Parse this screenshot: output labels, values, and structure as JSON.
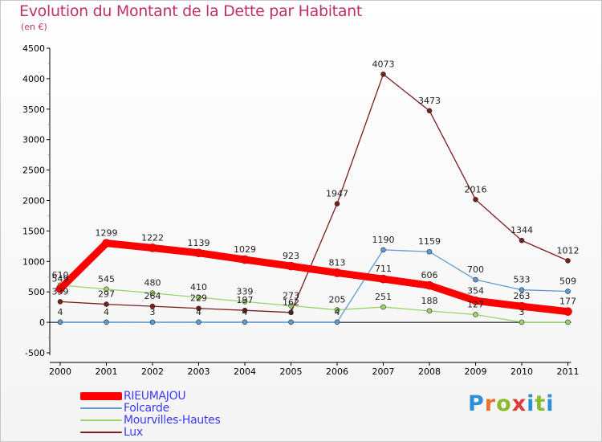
{
  "header": {
    "title": "Evolution du Montant de la Dette par Habitant",
    "unit": "(en €)"
  },
  "logo": {
    "text": "Proxiti"
  },
  "chart_data": {
    "type": "line",
    "title": "Evolution du Montant de la Dette par Habitant",
    "subtitle": "(en €)",
    "xlabel": "",
    "ylabel": "",
    "x": [
      "2000",
      "2001",
      "2002",
      "2003",
      "2004",
      "2005",
      "2006",
      "2007",
      "2008",
      "2009",
      "2010",
      "2011"
    ],
    "ylim": [
      -500,
      4500
    ],
    "yticks": [
      -500,
      0,
      500,
      1000,
      1500,
      2000,
      2500,
      3000,
      3500,
      4000,
      4500
    ],
    "grid": false,
    "legend_position": "bottom-left",
    "series": [
      {
        "name": "RIEUMAJOU",
        "color": "#ff0000",
        "values": [
          549,
          1299,
          1222,
          1139,
          1029,
          923,
          813,
          711,
          606,
          354,
          263,
          177
        ],
        "labels": [
          "549",
          "1299",
          "1222",
          "1139",
          "1029",
          "923",
          "813",
          "711",
          "606",
          "354",
          "263",
          "177"
        ]
      },
      {
        "name": "Folcarde",
        "color": "#5b9bd5",
        "values": [
          4,
          4,
          3,
          4,
          4,
          4,
          4,
          1190,
          1159,
          700,
          533,
          509
        ],
        "labels": [
          "4",
          "4",
          "3",
          "4",
          "4",
          "4",
          "4",
          "1190",
          "1159",
          "700",
          "533",
          "509"
        ]
      },
      {
        "name": "Mourvilles-Hautes",
        "color": "#9ed36a",
        "values": [
          610,
          545,
          480,
          410,
          339,
          273,
          205,
          251,
          188,
          127,
          3,
          3
        ],
        "labels": [
          "610",
          "545",
          "480",
          "410",
          "339",
          "273",
          "205",
          "251",
          "188",
          "127",
          "3",
          ""
        ]
      },
      {
        "name": "Lux",
        "color": "#7b1e1e",
        "values": [
          339,
          297,
          264,
          229,
          197,
          162,
          1947,
          4073,
          3473,
          2016,
          1344,
          1012
        ],
        "labels": [
          "339",
          "297",
          "264",
          "229",
          "197",
          "162",
          "1947",
          "4073",
          "3473",
          "2016",
          "1344",
          "1012"
        ]
      }
    ]
  }
}
